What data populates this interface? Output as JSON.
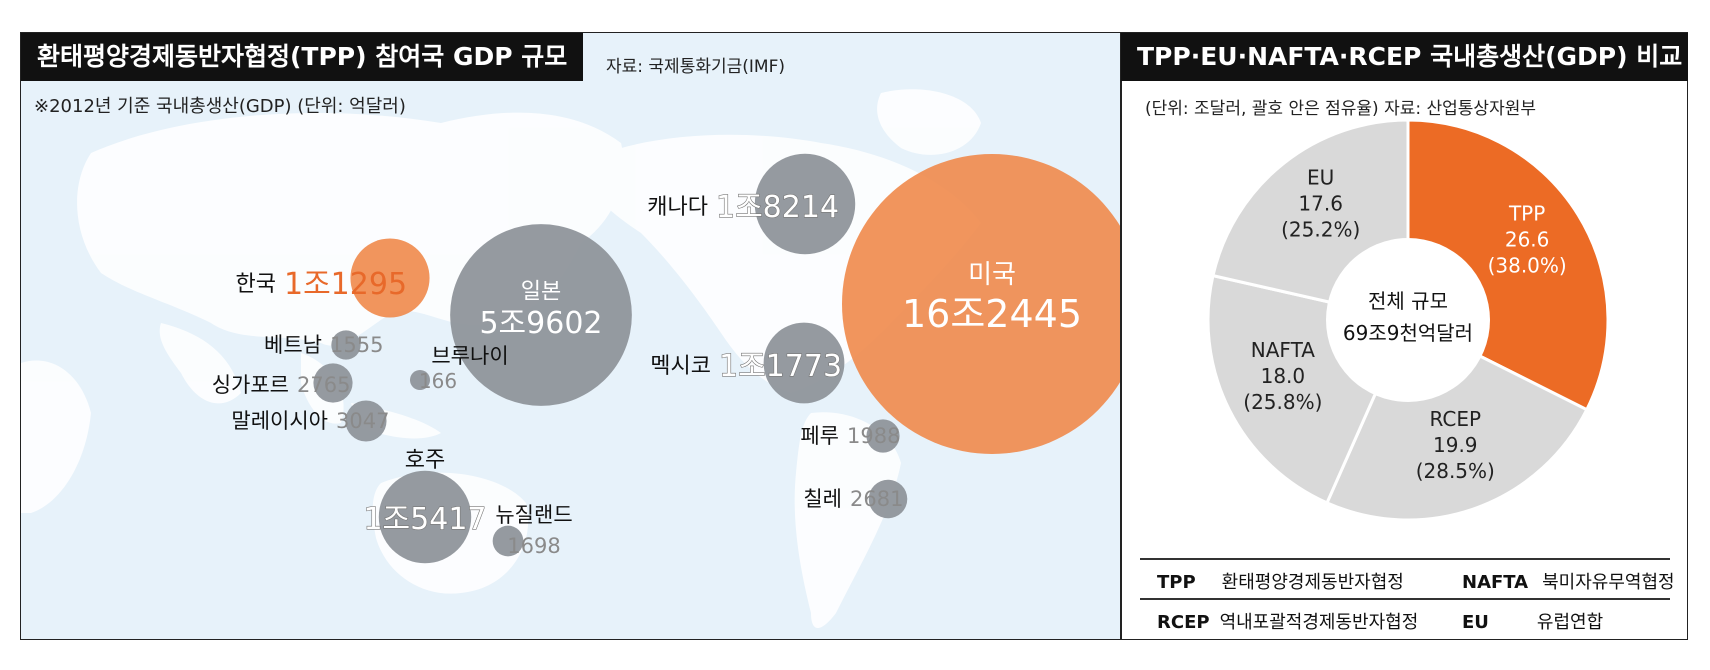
{
  "left_panel": {
    "title": "환태평양경제동반자협정(TPP) 참여국 GDP 규모",
    "source": "자료: 국제통화기금(IMF)",
    "note": "※2012년 기준 국내총생산(GDP) (단위: 억달러)"
  },
  "right_panel": {
    "title": "TPP·EU·NAFTA·RCEP 국내총생산(GDP) 비교",
    "note": "(단위: 조달러, 괄호 안은 점유율)  자료: 산업통상자원부",
    "center_label_1": "전체 규모",
    "center_label_2": "69조9천억달러"
  },
  "legend": [
    {
      "abbr": "TPP",
      "full": "환태평양경제동반자협정"
    },
    {
      "abbr": "NAFTA",
      "full": "북미자유무역협정"
    },
    {
      "abbr": "RCEP",
      "full": "역내포괄적경제동반자협정"
    },
    {
      "abbr": "EU",
      "full": "유럽연합"
    }
  ],
  "colors": {
    "orange": "#f08a4b",
    "orange_text": "#e8692a",
    "gray": "#8f959b",
    "pie_tpp": "#ec6b25",
    "pie_other": "#d9d9d9",
    "map_sea": "#e7f2fa",
    "map_land": "#ffffff"
  },
  "chart_data": [
    {
      "type": "scatter",
      "unit": "억달러",
      "points": [
        {
          "name": "한국",
          "value_text": "1조1295",
          "value": 11295,
          "color": "orange"
        },
        {
          "name": "일본",
          "value_text": "5조9602",
          "value": 59602,
          "color": "gray"
        },
        {
          "name": "베트남",
          "value_text": "1555",
          "value": 1555,
          "color": "gray"
        },
        {
          "name": "브루나이",
          "value_text": "166",
          "value": 166,
          "color": "gray"
        },
        {
          "name": "싱가포르",
          "value_text": "2765",
          "value": 2765,
          "color": "gray"
        },
        {
          "name": "말레이시아",
          "value_text": "3047",
          "value": 3047,
          "color": "gray"
        },
        {
          "name": "호주",
          "value_text": "1조5417",
          "value": 15417,
          "color": "gray"
        },
        {
          "name": "뉴질랜드",
          "value_text": "1698",
          "value": 1698,
          "color": "gray"
        },
        {
          "name": "캐나다",
          "value_text": "1조8214",
          "value": 18214,
          "color": "gray"
        },
        {
          "name": "멕시코",
          "value_text": "1조1773",
          "value": 11773,
          "color": "gray"
        },
        {
          "name": "미국",
          "value_text": "16조2445",
          "value": 162445,
          "color": "orange"
        },
        {
          "name": "페루",
          "value_text": "1988",
          "value": 1988,
          "color": "gray"
        },
        {
          "name": "칠레",
          "value_text": "2681",
          "value": 2681,
          "color": "gray"
        }
      ]
    },
    {
      "type": "pie",
      "unit": "조달러",
      "slices": [
        {
          "label": "TPP",
          "value": 26.6,
          "value_text": "26.6",
          "share_text": "(38.0%)"
        },
        {
          "label": "RCEP",
          "value": 19.9,
          "value_text": "19.9",
          "share_text": "(28.5%)"
        },
        {
          "label": "NAFTA",
          "value": 18.0,
          "value_text": "18.0",
          "share_text": "(25.8%)"
        },
        {
          "label": "EU",
          "value": 17.6,
          "value_text": "17.6",
          "share_text": "(25.2%)"
        }
      ]
    }
  ]
}
